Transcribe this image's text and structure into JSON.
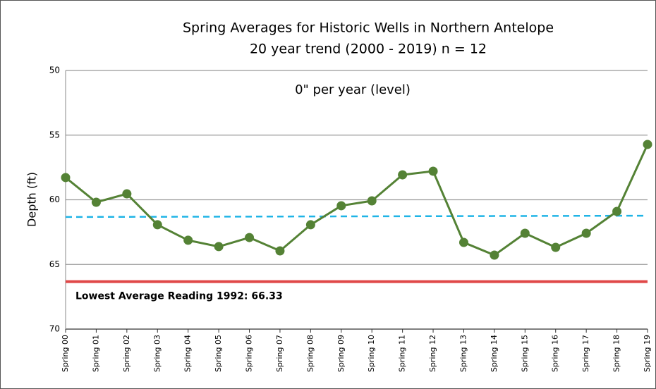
{
  "chart_data": {
    "type": "line",
    "title": "Spring Averages for Historic Wells in Northern Antelope",
    "subtitle": "20 year trend (2000 - 2019)  n = 12",
    "y_label": "Depth (ft)",
    "categories": [
      "Spring 00",
      "Spring 01",
      "Spring 02",
      "Spring 03",
      "Spring 04",
      "Spring 05",
      "Spring 06",
      "Spring 07",
      "Spring 08",
      "Spring 09",
      "Spring 10",
      "Spring 11",
      "Spring 12",
      "Spring 13",
      "Spring 14",
      "Spring 15",
      "Spring 16",
      "Spring 17",
      "Spring 18",
      "Spring 19"
    ],
    "values": [
      58.28,
      60.19,
      59.54,
      61.93,
      63.13,
      63.62,
      62.92,
      63.95,
      61.93,
      60.46,
      60.08,
      58.07,
      57.79,
      63.3,
      64.28,
      62.59,
      63.68,
      62.59,
      60.9,
      55.72
    ],
    "color": "#548235",
    "trend_line": {
      "label": "0\" per year (level)",
      "values": [
        61.33,
        61.23
      ],
      "color": "#1fb4e6"
    },
    "reference_line": {
      "label": "Lowest Average Reading 1992: 66.33",
      "value": 66.33,
      "color": "#e04848"
    },
    "ylim": [
      50,
      70
    ],
    "yticks": [
      50,
      55,
      60,
      65,
      70
    ],
    "y_inverted": true,
    "grid": true
  }
}
